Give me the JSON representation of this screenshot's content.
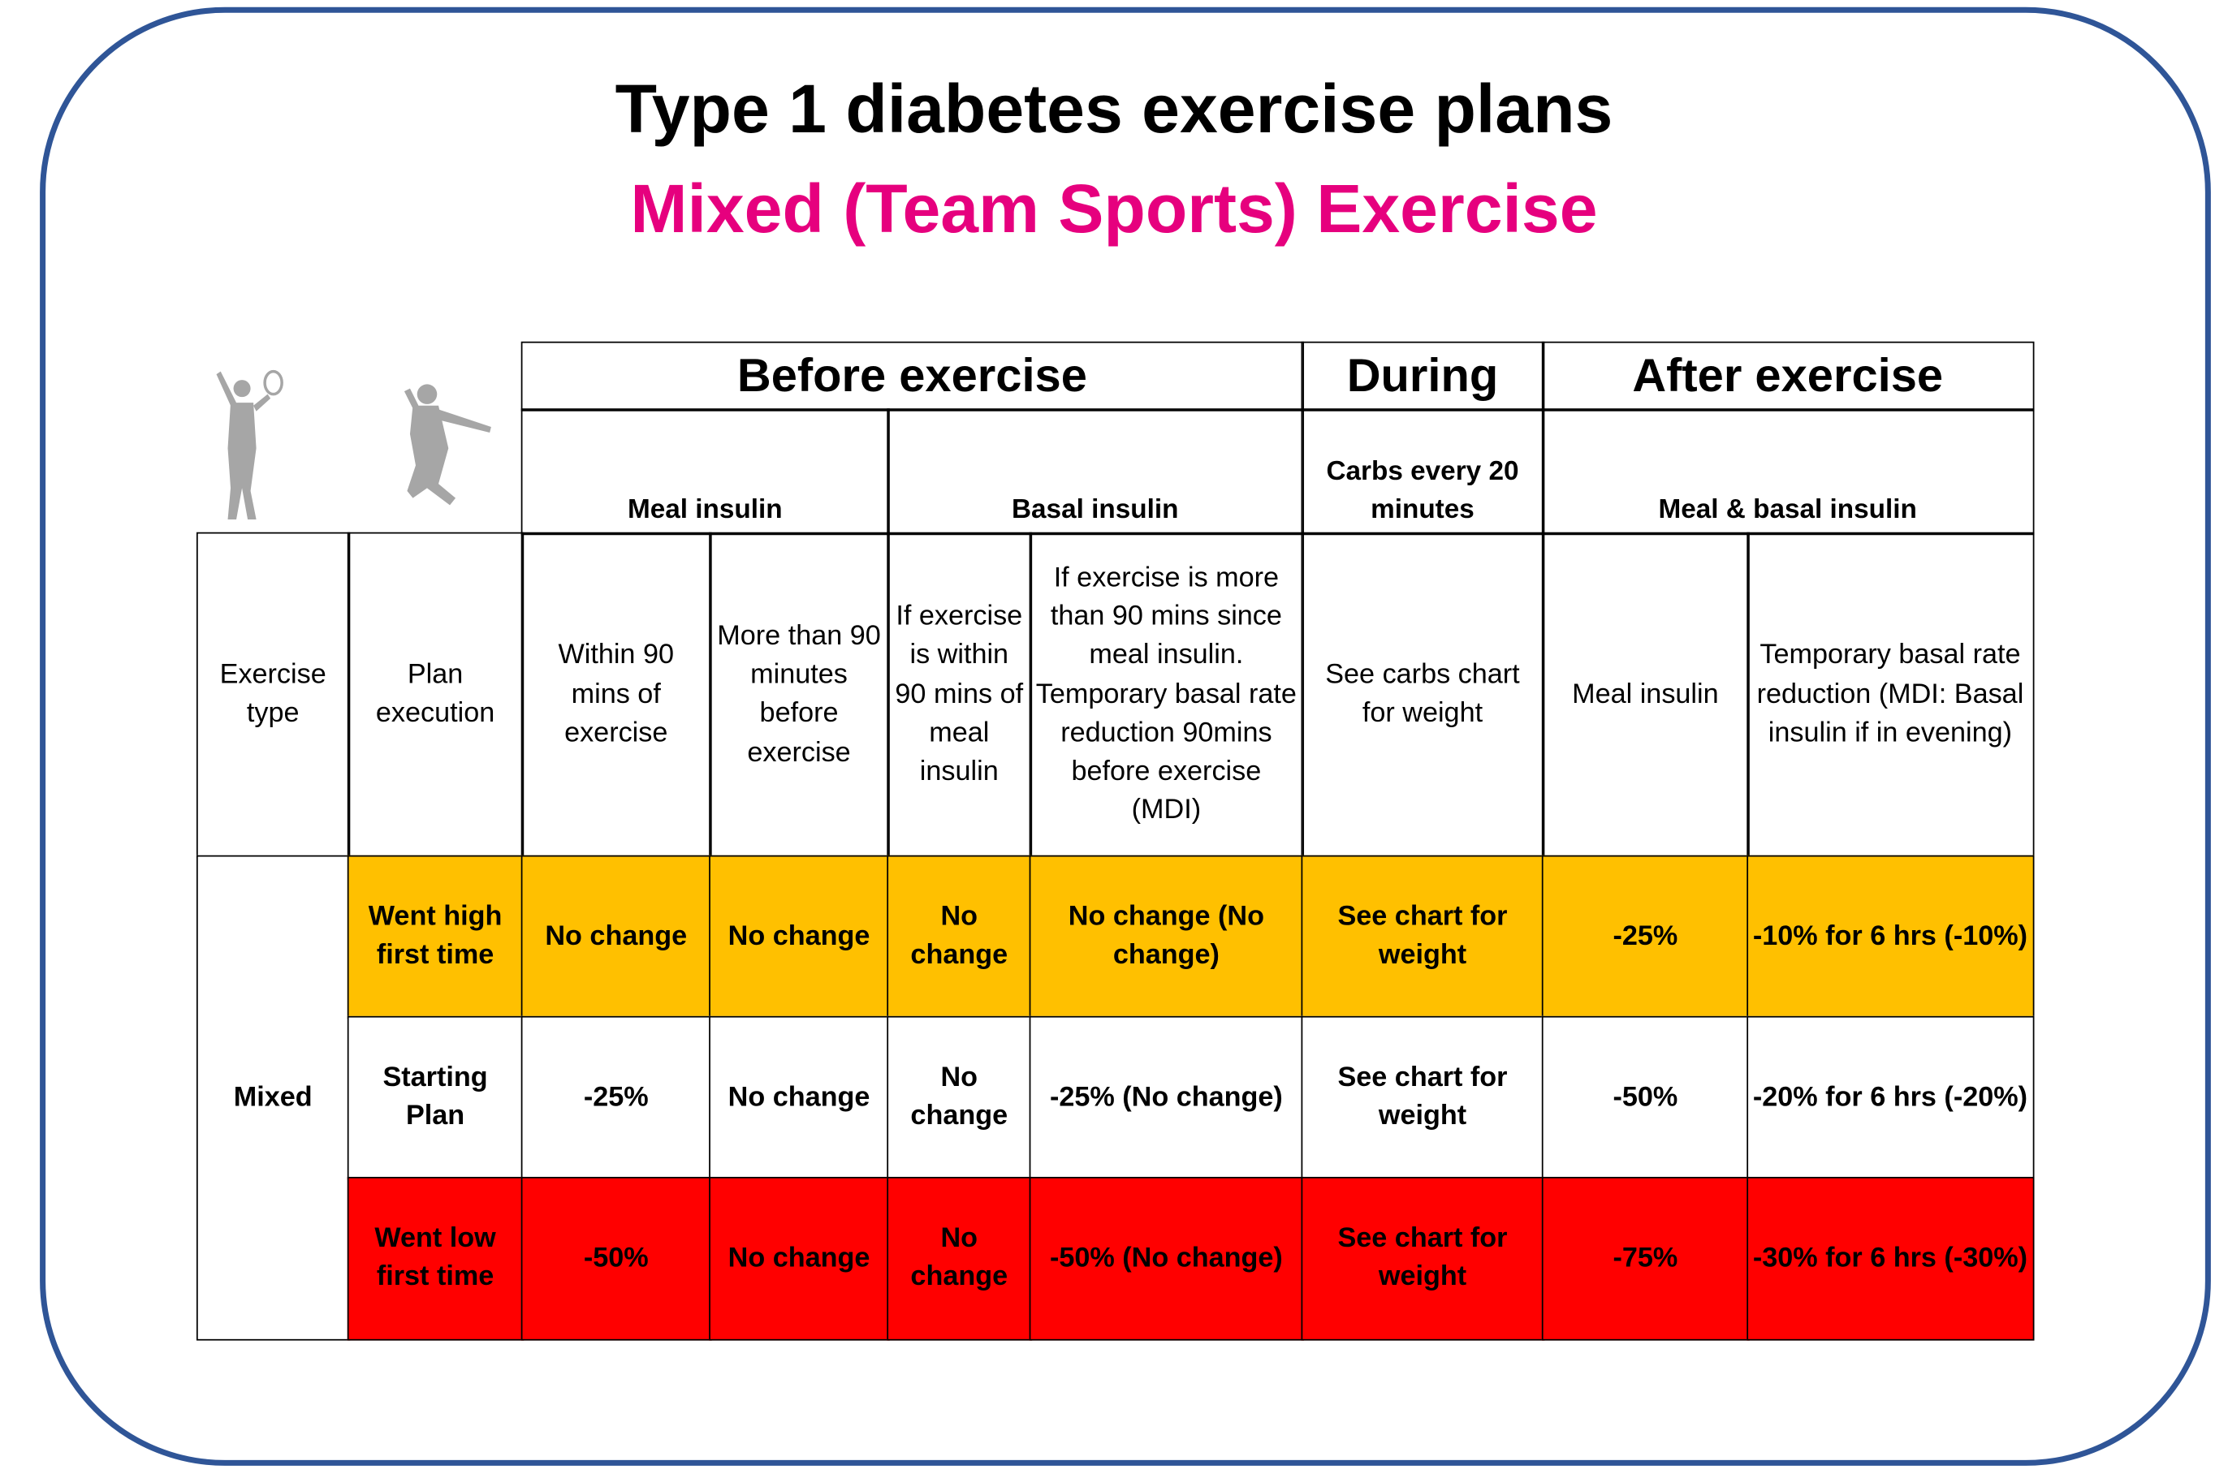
{
  "header": {
    "title": "Type 1 diabetes exercise plans",
    "subtitle": "Mixed (Team Sports) Exercise"
  },
  "table": {
    "group_headers": [
      "Before exercise",
      "During",
      "After exercise"
    ],
    "sub_headers": [
      "Meal insulin",
      "Basal insulin",
      "Carbs every 20 minutes",
      "Meal & basal insulin"
    ],
    "column_headers": [
      "Exercise type",
      "Plan execution",
      "Within 90 mins of exercise",
      "More than 90 minutes before exercise",
      "If exercise is within 90 mins of meal insulin",
      "If exercise is more than 90 mins since meal insulin. Temporary basal rate reduction 90mins before exercise (MDI)",
      "See carbs chart for weight",
      "Meal insulin",
      "Temporary basal rate reduction (MDI: Basal insulin if in evening)"
    ],
    "row_group": "Mixed",
    "rows": [
      [
        "Went high first time",
        "No change",
        "No change",
        "No change",
        "No change (No change)",
        "See chart for weight",
        "-25%",
        "-10% for 6 hrs (-10%)"
      ],
      [
        "Starting Plan",
        "-25%",
        "No change",
        "No change",
        "-25% (No change)",
        "See chart for weight",
        "-50%",
        "-20% for 6 hrs (-20%)"
      ],
      [
        "Went low first time",
        "-50%",
        "No change",
        "No change",
        "-50% (No change)",
        "See chart for weight",
        "-75%",
        "-30% for 6 hrs (-30%)"
      ]
    ]
  }
}
